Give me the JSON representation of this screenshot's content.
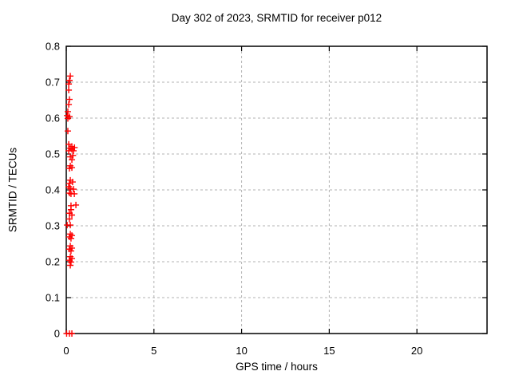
{
  "chart_data": {
    "type": "scatter",
    "title": "Day 302 of 2023, SRMTID for receiver p012",
    "xlabel": "GPS time / hours",
    "ylabel": "SRMTID / TECUs",
    "xlim": [
      0,
      24
    ],
    "ylim": [
      0,
      0.8
    ],
    "x_ticks": [
      0,
      5,
      10,
      15,
      20
    ],
    "x_tick_labels": [
      "0",
      "5",
      "10",
      "15",
      "20"
    ],
    "y_ticks": [
      0,
      0.1,
      0.2,
      0.3,
      0.4,
      0.5,
      0.6,
      0.7,
      0.8
    ],
    "y_tick_labels": [
      "0",
      "0.1",
      "0.2",
      "0.3",
      "0.4",
      "0.5",
      "0.6",
      "0.7",
      "0.8"
    ],
    "grid": true,
    "legend": "none",
    "marker": "plus",
    "marker_color": "#ff0000",
    "grid_color": "#b3b3b3",
    "border_color": "#000000",
    "background_color": "#ffffff",
    "series": [
      {
        "name": "SRMTID",
        "points": [
          [
            0.23,
            0.717
          ],
          [
            0.18,
            0.705
          ],
          [
            0.14,
            0.695
          ],
          [
            0.14,
            0.678
          ],
          [
            0.18,
            0.652
          ],
          [
            0.14,
            0.638
          ],
          [
            0.09,
            0.618
          ],
          [
            0.05,
            0.607
          ],
          [
            0.18,
            0.604
          ],
          [
            0.09,
            0.599
          ],
          [
            0.09,
            0.564
          ],
          [
            0.14,
            0.527
          ],
          [
            0.32,
            0.521
          ],
          [
            0.47,
            0.518
          ],
          [
            0.23,
            0.516
          ],
          [
            0.32,
            0.513
          ],
          [
            0.14,
            0.509
          ],
          [
            0.41,
            0.509
          ],
          [
            0.38,
            0.496
          ],
          [
            0.23,
            0.492
          ],
          [
            0.32,
            0.484
          ],
          [
            0.23,
            0.467
          ],
          [
            0.32,
            0.462
          ],
          [
            0.18,
            0.46
          ],
          [
            0.23,
            0.427
          ],
          [
            0.36,
            0.422
          ],
          [
            0.18,
            0.418
          ],
          [
            0.14,
            0.409
          ],
          [
            0.23,
            0.404
          ],
          [
            0.41,
            0.402
          ],
          [
            0.18,
            0.391
          ],
          [
            0.27,
            0.389
          ],
          [
            0.46,
            0.389
          ],
          [
            0.55,
            0.358
          ],
          [
            0.27,
            0.356
          ],
          [
            0.27,
            0.345
          ],
          [
            0.18,
            0.335
          ],
          [
            0.32,
            0.33
          ],
          [
            0.18,
            0.319
          ],
          [
            0.05,
            0.302
          ],
          [
            0.23,
            0.302
          ],
          [
            0.23,
            0.277
          ],
          [
            0.32,
            0.273
          ],
          [
            0.18,
            0.269
          ],
          [
            0.27,
            0.265
          ],
          [
            0.23,
            0.244
          ],
          [
            0.32,
            0.238
          ],
          [
            0.18,
            0.235
          ],
          [
            0.27,
            0.23
          ],
          [
            0.23,
            0.214
          ],
          [
            0.32,
            0.209
          ],
          [
            0.18,
            0.204
          ],
          [
            0.27,
            0.199
          ],
          [
            0.23,
            0.19
          ],
          [
            0.02,
            0.0
          ],
          [
            0.18,
            0.0
          ],
          [
            0.32,
            0.0
          ]
        ]
      }
    ]
  }
}
